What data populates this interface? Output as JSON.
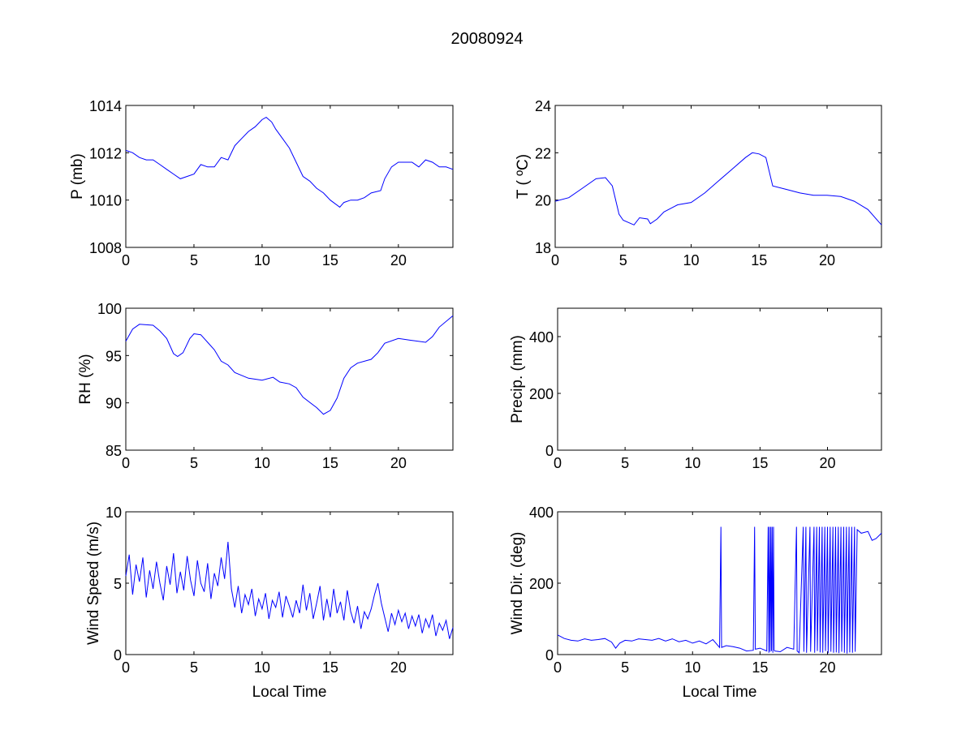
{
  "chart_data": {
    "title": "20080924",
    "line_color": "#0000ff",
    "panels": [
      {
        "type": "line",
        "ylabel": "P (mb)",
        "xlabel": "",
        "xlim": [
          0,
          24
        ],
        "ylim": [
          1008,
          1014
        ],
        "xticks": [
          0,
          5,
          10,
          15,
          20
        ],
        "yticks": [
          1008,
          1010,
          1012,
          1014
        ],
        "x": [
          0,
          0.5,
          1,
          1.5,
          2,
          2.5,
          3,
          3.5,
          4,
          4.5,
          5,
          5.5,
          6,
          6.5,
          7,
          7.5,
          8,
          8.5,
          9,
          9.5,
          10,
          10.3,
          10.7,
          11,
          11.5,
          12,
          12.5,
          13,
          13.5,
          14,
          14.5,
          15,
          15.7,
          16,
          16.5,
          17,
          17.5,
          18,
          18.7,
          19,
          19.5,
          20,
          20.5,
          21,
          21.5,
          22,
          22.5,
          23,
          23.5,
          24
        ],
        "y": [
          1012.1,
          1012.0,
          1011.8,
          1011.7,
          1011.7,
          1011.5,
          1011.3,
          1011.1,
          1010.9,
          1011.0,
          1011.1,
          1011.5,
          1011.4,
          1011.4,
          1011.8,
          1011.7,
          1012.3,
          1012.6,
          1012.9,
          1013.1,
          1013.4,
          1013.5,
          1013.3,
          1013.0,
          1012.6,
          1012.2,
          1011.6,
          1011.0,
          1010.8,
          1010.5,
          1010.3,
          1010.0,
          1009.7,
          1009.9,
          1010.0,
          1010.0,
          1010.1,
          1010.3,
          1010.4,
          1010.9,
          1011.4,
          1011.6,
          1011.6,
          1011.6,
          1011.4,
          1011.7,
          1011.6,
          1011.4,
          1011.4,
          1011.3
        ]
      },
      {
        "type": "line",
        "ylabel": "T ( ºC)",
        "xlabel": "",
        "xlim": [
          0,
          24
        ],
        "ylim": [
          18,
          24
        ],
        "xticks": [
          0,
          5,
          10,
          15,
          20
        ],
        "yticks": [
          18,
          20,
          22,
          24
        ],
        "x": [
          0,
          1,
          2,
          3,
          3.7,
          4.2,
          4.7,
          5,
          5.8,
          6.2,
          6.8,
          7,
          7.5,
          8,
          9,
          10,
          11,
          12,
          13,
          14,
          14.5,
          15,
          15.5,
          16,
          17,
          18,
          19,
          20,
          21,
          22,
          23,
          24
        ],
        "y": [
          19.95,
          20.1,
          20.5,
          20.9,
          20.95,
          20.6,
          19.4,
          19.15,
          18.95,
          19.25,
          19.2,
          19.0,
          19.2,
          19.5,
          19.8,
          19.9,
          20.3,
          20.8,
          21.3,
          21.8,
          22.0,
          21.95,
          21.8,
          20.6,
          20.45,
          20.3,
          20.2,
          20.2,
          20.15,
          19.95,
          19.6,
          18.95
        ]
      },
      {
        "type": "line",
        "ylabel": "RH (%)",
        "xlabel": "",
        "xlim": [
          0,
          24
        ],
        "ylim": [
          85,
          100
        ],
        "xticks": [
          0,
          5,
          10,
          15,
          20
        ],
        "yticks": [
          85,
          90,
          95,
          100
        ],
        "x": [
          0,
          0.5,
          1,
          2,
          2.5,
          3,
          3.5,
          3.8,
          4.2,
          4.7,
          5,
          5.5,
          6,
          6.5,
          7,
          7.5,
          8,
          9,
          10,
          10.8,
          11.3,
          12,
          12.5,
          13,
          14,
          14.5,
          15,
          15.5,
          16,
          16.5,
          17,
          18,
          18.5,
          19,
          20,
          21,
          22,
          22.5,
          23,
          24
        ],
        "y": [
          96.5,
          97.8,
          98.3,
          98.2,
          97.6,
          96.8,
          95.2,
          94.9,
          95.3,
          96.8,
          97.3,
          97.2,
          96.4,
          95.6,
          94.4,
          94.0,
          93.2,
          92.6,
          92.4,
          92.7,
          92.2,
          92.0,
          91.6,
          90.6,
          89.5,
          88.8,
          89.2,
          90.5,
          92.6,
          93.7,
          94.2,
          94.6,
          95.3,
          96.3,
          96.8,
          96.6,
          96.4,
          97.0,
          98.0,
          99.2
        ]
      },
      {
        "type": "line",
        "ylabel": "Precip. (mm)",
        "xlabel": "",
        "xlim": [
          0,
          24
        ],
        "ylim": [
          0,
          500
        ],
        "xticks": [
          0,
          5,
          10,
          15,
          20
        ],
        "yticks": [
          0,
          200,
          400
        ],
        "x": [],
        "y": []
      },
      {
        "type": "line",
        "ylabel": "Wind Speed (m/s)",
        "xlabel": "Local Time",
        "xlim": [
          0,
          24
        ],
        "ylim": [
          0,
          10
        ],
        "xticks": [
          0,
          5,
          10,
          15,
          20
        ],
        "yticks": [
          0,
          5,
          10
        ],
        "x": [
          0,
          0.25,
          0.5,
          0.75,
          1,
          1.25,
          1.5,
          1.75,
          2,
          2.25,
          2.5,
          2.75,
          3,
          3.25,
          3.5,
          3.75,
          4,
          4.25,
          4.5,
          4.75,
          5,
          5.25,
          5.5,
          5.75,
          6,
          6.25,
          6.5,
          6.75,
          7,
          7.25,
          7.5,
          7.75,
          8,
          8.25,
          8.5,
          8.75,
          9,
          9.25,
          9.5,
          9.75,
          10,
          10.25,
          10.5,
          10.75,
          11,
          11.25,
          11.5,
          11.75,
          12,
          12.25,
          12.5,
          12.75,
          13,
          13.25,
          13.5,
          13.75,
          14,
          14.25,
          14.5,
          14.75,
          15,
          15.25,
          15.5,
          15.75,
          16,
          16.25,
          16.5,
          16.75,
          17,
          17.25,
          17.5,
          17.75,
          18,
          18.25,
          18.5,
          18.75,
          19,
          19.25,
          19.5,
          19.75,
          20,
          20.25,
          20.5,
          20.75,
          21,
          21.25,
          21.5,
          21.75,
          22,
          22.25,
          22.5,
          22.75,
          23,
          23.25,
          23.5,
          23.75,
          24
        ],
        "y": [
          5.5,
          7.0,
          4.2,
          6.3,
          5.1,
          6.8,
          4.0,
          5.9,
          4.6,
          6.5,
          5.0,
          3.8,
          6.2,
          4.9,
          7.1,
          4.3,
          5.8,
          4.5,
          6.9,
          5.2,
          4.1,
          6.6,
          5.0,
          4.4,
          6.4,
          3.9,
          5.7,
          4.8,
          6.8,
          5.3,
          7.9,
          4.6,
          3.3,
          4.8,
          2.9,
          4.2,
          3.5,
          4.6,
          2.7,
          3.9,
          3.2,
          4.3,
          2.5,
          3.8,
          3.3,
          4.4,
          2.6,
          4.1,
          3.4,
          2.6,
          3.8,
          2.9,
          4.9,
          3.1,
          4.3,
          2.5,
          3.6,
          4.8,
          2.4,
          3.9,
          2.6,
          4.6,
          2.9,
          3.7,
          2.4,
          4.5,
          3.0,
          2.2,
          3.4,
          1.8,
          3.0,
          2.5,
          3.2,
          4.2,
          5.0,
          3.6,
          2.6,
          1.6,
          2.9,
          2.1,
          3.1,
          2.3,
          2.9,
          1.8,
          2.7,
          2.0,
          2.8,
          1.5,
          2.5,
          1.9,
          2.8,
          1.3,
          2.2,
          1.7,
          2.4,
          1.1,
          1.9
        ]
      },
      {
        "type": "line",
        "ylabel": "Wind Dir. (deg)",
        "xlabel": "Local Time",
        "xlim": [
          0,
          24
        ],
        "ylim": [
          0,
          400
        ],
        "xticks": [
          0,
          5,
          10,
          15,
          20
        ],
        "yticks": [
          0,
          200,
          400
        ],
        "x": [
          0,
          0.5,
          1,
          1.5,
          2,
          2.5,
          3,
          3.5,
          4,
          4.3,
          4.6,
          5,
          5.5,
          6,
          6.5,
          7,
          7.5,
          8,
          8.5,
          9,
          9.5,
          10,
          10.5,
          11,
          11.5,
          12,
          12.1,
          12.15,
          12.5,
          13,
          13.5,
          14,
          14.5,
          14.6,
          14.65,
          15,
          15.5,
          15.6,
          15.65,
          15.7,
          15.75,
          15.8,
          15.85,
          15.9,
          15.95,
          16.0,
          16.05,
          16.1,
          16.5,
          17,
          17.5,
          17.7,
          17.75,
          17.9,
          18.2,
          18.25,
          18.4,
          18.45,
          18.7,
          18.75,
          19.0,
          19.05,
          19.2,
          19.25,
          19.4,
          19.45,
          19.6,
          19.65,
          19.8,
          19.85,
          20.0,
          20.05,
          20.2,
          20.25,
          20.4,
          20.45,
          20.6,
          20.65,
          20.8,
          20.85,
          21.0,
          21.05,
          21.2,
          21.25,
          21.4,
          21.45,
          21.6,
          21.65,
          21.8,
          21.85,
          22.0,
          22.05,
          22.2,
          22.5,
          23,
          23.3,
          23.6,
          24
        ],
        "y": [
          55,
          45,
          40,
          38,
          44,
          40,
          42,
          45,
          35,
          18,
          32,
          40,
          38,
          44,
          42,
          40,
          45,
          38,
          44,
          36,
          40,
          32,
          38,
          30,
          42,
          20,
          358,
          20,
          25,
          22,
          18,
          10,
          12,
          358,
          15,
          18,
          10,
          358,
          5,
          358,
          8,
          358,
          10,
          358,
          5,
          358,
          12,
          10,
          8,
          20,
          15,
          358,
          10,
          5,
          358,
          8,
          358,
          5,
          358,
          8,
          358,
          5,
          358,
          10,
          358,
          6,
          358,
          5,
          358,
          10,
          358,
          4,
          358,
          8,
          358,
          5,
          358,
          6,
          358,
          4,
          358,
          8,
          358,
          5,
          358,
          3,
          358,
          6,
          358,
          5,
          358,
          8,
          350,
          340,
          345,
          320,
          325,
          340
        ]
      }
    ]
  }
}
